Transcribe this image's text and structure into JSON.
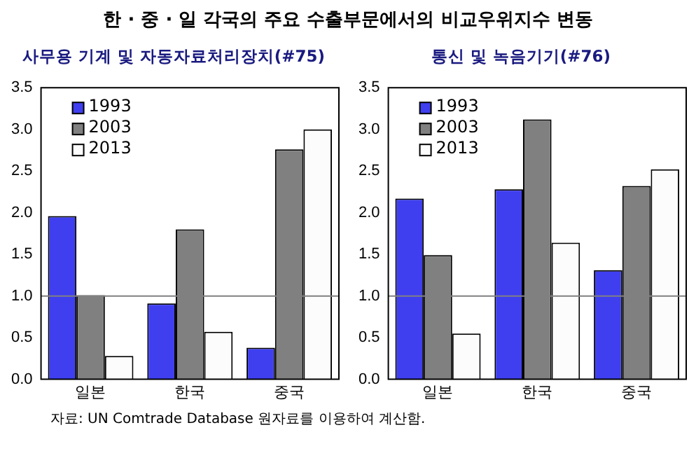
{
  "chart_data": [
    {
      "type": "bar",
      "title": "한 · 중 · 일 각국의 주요 수출부문에서의 비교우위지수 변동",
      "subtitle": "사무용 기계 및 자동자료처리장치(#75)",
      "categories": [
        "일본",
        "한국",
        "중국"
      ],
      "series": [
        {
          "name": "1993",
          "color": "#3f3ff0",
          "values": [
            1.96,
            0.91,
            0.38
          ]
        },
        {
          "name": "2003",
          "color": "#808080",
          "values": [
            1.01,
            1.8,
            2.76
          ]
        },
        {
          "name": "2013",
          "color": "#fcfcfc",
          "values": [
            0.28,
            0.57,
            3.0
          ]
        }
      ],
      "ylim": [
        0,
        3.5
      ],
      "yticks": [
        {
          "value": 0,
          "label": "0.0"
        },
        {
          "value": 0.5,
          "label": "0.5"
        },
        {
          "value": 1,
          "label": "1.0"
        },
        {
          "value": 1.5,
          "label": "1.5"
        },
        {
          "value": 2,
          "label": "2.0"
        },
        {
          "value": 2.5,
          "label": "2.5"
        },
        {
          "value": 3,
          "label": "3.0"
        },
        {
          "value": 3.5,
          "label": "3.5"
        }
      ],
      "ref_lines": [
        {
          "axis": "y",
          "value": 1,
          "color": "#808080"
        }
      ],
      "legend": "top left",
      "grid": false,
      "annotations": [
        "자료: UN Comtrade Database 원자료를 이용하여 계산함."
      ]
    },
    {
      "type": "bar",
      "subtitle": "통신 및 녹음기기(#76)",
      "categories": [
        "일본",
        "한국",
        "중국"
      ],
      "series": [
        {
          "name": "1993",
          "color": "#3f3ff0",
          "values": [
            2.17,
            2.28,
            1.31
          ]
        },
        {
          "name": "2003",
          "color": "#808080",
          "values": [
            1.49,
            3.12,
            2.32
          ]
        },
        {
          "name": "2013",
          "color": "#fcfcfc",
          "values": [
            0.55,
            1.64,
            2.52
          ]
        }
      ],
      "ylim": [
        0,
        3.5
      ],
      "yticks": [
        {
          "value": 0,
          "label": "0.0"
        },
        {
          "value": 0.5,
          "label": "0.5"
        },
        {
          "value": 1,
          "label": "1.0"
        },
        {
          "value": 1.5,
          "label": "1.5"
        },
        {
          "value": 2,
          "label": "2.0"
        },
        {
          "value": 2.5,
          "label": "2.5"
        },
        {
          "value": 3,
          "label": "3.0"
        },
        {
          "value": 3.5,
          "label": "3.5"
        }
      ],
      "ref_lines": [
        {
          "axis": "y",
          "value": 1,
          "color": "#808080"
        }
      ],
      "legend": "top left",
      "grid": false
    }
  ]
}
